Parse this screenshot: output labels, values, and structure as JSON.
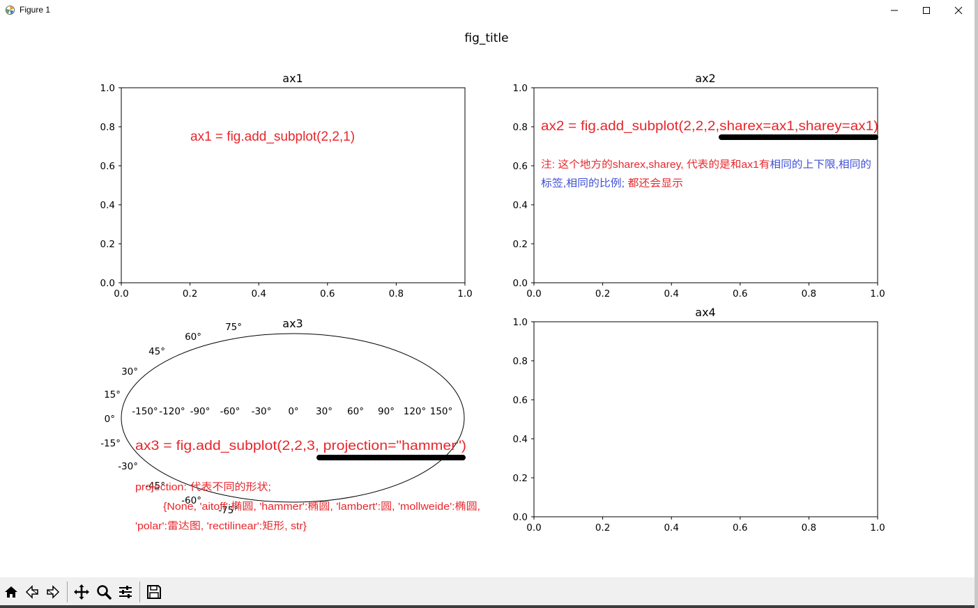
{
  "window": {
    "title": "Figure 1",
    "minimize_label": "minimize",
    "maximize_label": "maximize",
    "close_label": "close"
  },
  "figure": {
    "suptitle": "fig_title",
    "ax1": {
      "title": "ax1",
      "annotation": "ax1 = fig.add_subplot(2,2,1)",
      "xticks": [
        "0.0",
        "0.2",
        "0.4",
        "0.6",
        "0.8",
        "1.0"
      ],
      "yticks": [
        "0.0",
        "0.2",
        "0.4",
        "0.6",
        "0.8",
        "1.0"
      ]
    },
    "ax2": {
      "title": "ax2",
      "annotation": "ax2 = fig.add_subplot(2,2,2,sharex=ax1,sharey=ax1)",
      "note_line1_red": "注: 这个地方的sharex,sharey, 代表的是和ax1有",
      "note_line1_blue": "相同的上下限,相同的",
      "note_line2_blue": "标签,相同的比例;",
      "note_line2_red": " 都还会显示",
      "xticks": [
        "0.0",
        "0.2",
        "0.4",
        "0.6",
        "0.8",
        "1.0"
      ],
      "yticks": [
        "0.0",
        "0.2",
        "0.4",
        "0.6",
        "0.8",
        "1.0"
      ]
    },
    "ax3": {
      "title": "ax3",
      "annotation": "ax3 = fig.add_subplot(2,2,3, projection=\"hammer\")",
      "note_line1": "projection: 代表不同的形状;",
      "note_line2": "{None, 'aitoff':椭圆, 'hammer':椭圆, 'lambert':圆, 'mollweide':椭圆,",
      "note_line3": "'polar':雷达图, 'rectilinear':矩形, str}",
      "lon_labels": [
        "-150°",
        "-120°",
        "-90°",
        "-60°",
        "-30°",
        "0°",
        "30°",
        "60°",
        "90°",
        "120°",
        "150°"
      ],
      "lat_labels": [
        "75°",
        "60°",
        "45°",
        "30°",
        "15°",
        "0°",
        "-15°",
        "-30°",
        "-45°",
        "-60°",
        "-75°"
      ]
    },
    "ax4": {
      "title": "ax4",
      "xticks": [
        "0.0",
        "0.2",
        "0.4",
        "0.6",
        "0.8",
        "1.0"
      ],
      "yticks": [
        "0.0",
        "0.2",
        "0.4",
        "0.6",
        "0.8",
        "1.0"
      ]
    }
  },
  "colors": {
    "red": "#e8262b",
    "blue": "#3d4fd6",
    "highlight": "#000000"
  },
  "toolbar": {
    "home_label": "home-icon",
    "back_label": "back-icon",
    "forward_label": "forward-icon",
    "pan_label": "pan-icon",
    "zoom_label": "zoom-icon",
    "configure_label": "configure-icon",
    "save_label": "save-icon"
  }
}
